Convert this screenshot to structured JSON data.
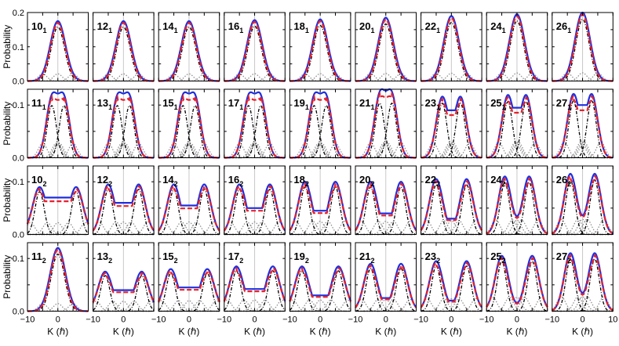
{
  "figure": {
    "ylabel": "Probability",
    "xlabel": "K (ℏ)",
    "x_ticks": [
      "−10",
      "0",
      "10"
    ],
    "row_y_ticks": [
      [
        "0.2",
        "0.1",
        "0.0"
      ],
      [
        "0.1",
        "0.0"
      ],
      [
        "0.1",
        "0.0"
      ],
      [
        "0.1",
        "0.0"
      ]
    ]
  },
  "chart_data": {
    "type": "line",
    "layout": "grid 4 rows x 9 columns of small line plots",
    "xlim": [
      -10,
      10
    ],
    "row_ylims": [
      [
        0,
        0.2
      ],
      [
        0,
        0.13
      ],
      [
        0,
        0.13
      ],
      [
        0,
        0.13
      ]
    ],
    "grid": false,
    "colors": {
      "total": "#1f2fe0",
      "approx": "#e8202a",
      "component": "#000000",
      "minor": "#909090",
      "center_line": "#c8c8c8"
    },
    "line_styles": {
      "total": "solid blue",
      "approx": "dashed red",
      "component": "dash-dot black",
      "minor": "dotted gray"
    },
    "panels": [
      {
        "label": "10",
        "sub": "1",
        "peaks": [
          0
        ],
        "peak_value": 0.175,
        "center_value": 0.175
      },
      {
        "label": "12",
        "sub": "1",
        "peaks": [
          0
        ],
        "peak_value": 0.175,
        "center_value": 0.175
      },
      {
        "label": "14",
        "sub": "1",
        "peaks": [
          0
        ],
        "peak_value": 0.175,
        "center_value": 0.175
      },
      {
        "label": "16",
        "sub": "1",
        "peaks": [
          0
        ],
        "peak_value": 0.178,
        "center_value": 0.178
      },
      {
        "label": "18",
        "sub": "1",
        "peaks": [
          0
        ],
        "peak_value": 0.18,
        "center_value": 0.18
      },
      {
        "label": "20",
        "sub": "1",
        "peaks": [
          0
        ],
        "peak_value": 0.185,
        "center_value": 0.185
      },
      {
        "label": "22",
        "sub": "1",
        "peaks": [
          0
        ],
        "peak_value": 0.19,
        "center_value": 0.19
      },
      {
        "label": "24",
        "sub": "1",
        "peaks": [
          0
        ],
        "peak_value": 0.195,
        "center_value": 0.195
      },
      {
        "label": "26",
        "sub": "1",
        "peaks": [
          0
        ],
        "peak_value": 0.2,
        "center_value": 0.2
      },
      {
        "label": "11",
        "sub": "1",
        "peaks": [
          -2,
          2
        ],
        "peak_value": 0.11,
        "center_value": 0.085
      },
      {
        "label": "13",
        "sub": "1",
        "peaks": [
          -2,
          2
        ],
        "peak_value": 0.11,
        "center_value": 0.085
      },
      {
        "label": "15",
        "sub": "1",
        "peaks": [
          -2,
          2
        ],
        "peak_value": 0.11,
        "center_value": 0.087
      },
      {
        "label": "17",
        "sub": "1",
        "peaks": [
          -2,
          2
        ],
        "peak_value": 0.11,
        "center_value": 0.088
      },
      {
        "label": "19",
        "sub": "1",
        "peaks": [
          -2,
          2
        ],
        "peak_value": 0.11,
        "center_value": 0.09
      },
      {
        "label": "21",
        "sub": "1",
        "peaks": [
          -2,
          2
        ],
        "peak_value": 0.115,
        "center_value": 0.09
      },
      {
        "label": "23",
        "sub": "1",
        "peaks": [
          -3,
          3
        ],
        "peak_value": 0.115,
        "center_value": 0.09
      },
      {
        "label": "25",
        "sub": "1",
        "peaks": [
          -3,
          3
        ],
        "peak_value": 0.118,
        "center_value": 0.095
      },
      {
        "label": "27",
        "sub": "1",
        "peaks": [
          -3,
          3
        ],
        "peak_value": 0.12,
        "center_value": 0.1
      },
      {
        "label": "10",
        "sub": "2",
        "peaks": [
          -6,
          6
        ],
        "peak_value": 0.09,
        "center_value": 0.07
      },
      {
        "label": "12",
        "sub": "2",
        "peaks": [
          -5,
          5
        ],
        "peak_value": 0.095,
        "center_value": 0.06
      },
      {
        "label": "14",
        "sub": "2",
        "peaks": [
          -5,
          5
        ],
        "peak_value": 0.095,
        "center_value": 0.055
      },
      {
        "label": "16",
        "sub": "2",
        "peaks": [
          -5,
          5
        ],
        "peak_value": 0.095,
        "center_value": 0.05
      },
      {
        "label": "18",
        "sub": "2",
        "peaks": [
          -5,
          5
        ],
        "peak_value": 0.1,
        "center_value": 0.045
      },
      {
        "label": "20",
        "sub": "2",
        "peaks": [
          -5,
          5
        ],
        "peak_value": 0.1,
        "center_value": 0.04
      },
      {
        "label": "22",
        "sub": "2",
        "peaks": [
          -5,
          5
        ],
        "peak_value": 0.105,
        "center_value": 0.03
      },
      {
        "label": "24",
        "sub": "2",
        "peaks": [
          -4,
          4
        ],
        "peak_value": 0.11,
        "center_value": 0.025
      },
      {
        "label": "26",
        "sub": "2",
        "peaks": [
          -4,
          4
        ],
        "peak_value": 0.115,
        "center_value": 0.02
      },
      {
        "label": "11",
        "sub": "2",
        "peaks": [
          0
        ],
        "peak_value": 0.12,
        "center_value": 0.12
      },
      {
        "label": "13",
        "sub": "2",
        "peaks": [
          -6,
          6
        ],
        "peak_value": 0.075,
        "center_value": 0.04
      },
      {
        "label": "15",
        "sub": "2",
        "peaks": [
          -6,
          6
        ],
        "peak_value": 0.08,
        "center_value": 0.045
      },
      {
        "label": "17",
        "sub": "2",
        "peaks": [
          -6,
          6
        ],
        "peak_value": 0.085,
        "center_value": 0.042
      },
      {
        "label": "19",
        "sub": "2",
        "peaks": [
          -6,
          6
        ],
        "peak_value": 0.085,
        "center_value": 0.03
      },
      {
        "label": "21",
        "sub": "2",
        "peaks": [
          -5,
          5
        ],
        "peak_value": 0.09,
        "center_value": 0.025
      },
      {
        "label": "23",
        "sub": "2",
        "peaks": [
          -5,
          5
        ],
        "peak_value": 0.095,
        "center_value": 0.02
      },
      {
        "label": "25",
        "sub": "2",
        "peaks": [
          -5,
          5
        ],
        "peak_value": 0.105,
        "center_value": 0.015
      },
      {
        "label": "27",
        "sub": "2",
        "peaks": [
          -4,
          4
        ],
        "peak_value": 0.11,
        "center_value": 0.01
      }
    ]
  }
}
